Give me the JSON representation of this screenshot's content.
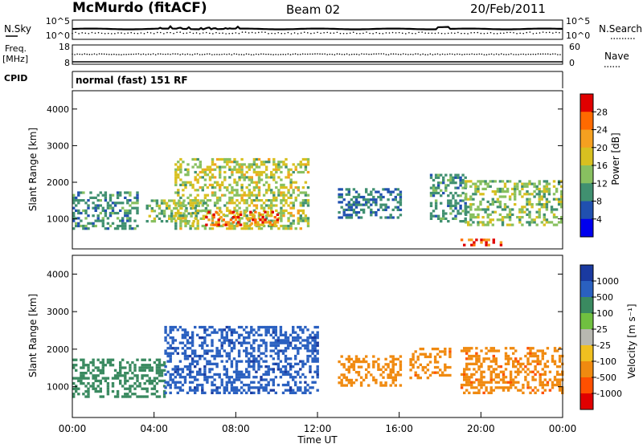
{
  "chart_data": [
    {
      "type": "line",
      "title": "McMurdo (fitACF)",
      "beam": "Beam 02",
      "date": "20/Feb/2011",
      "panel": "noise",
      "left_label": "N.Sky",
      "right_label": "N.Search",
      "ylim_left": [
        "10^0",
        "10^5"
      ],
      "ylim_right": [
        "10^0",
        "10^5"
      ],
      "y_ticks_left": [
        "10^5",
        "10^0"
      ],
      "y_ticks_right": [
        "10^5",
        "10^0"
      ]
    },
    {
      "type": "line",
      "panel": "frequency",
      "left_label": "Freq.",
      "left_unit": "[MHz]",
      "right_label": "Nave",
      "y_ticks_left": [
        "18",
        "8"
      ],
      "y_ticks_right": [
        "60",
        "0"
      ]
    },
    {
      "type": "table",
      "panel": "cpid",
      "label": "CPID",
      "text": "normal (fast) 151 RF"
    },
    {
      "type": "heatmap",
      "panel": "power",
      "ylabel": "Slant Range [km]",
      "y_ticks": [
        1000,
        2000,
        3000,
        4000
      ],
      "ylim": [
        180,
        4500
      ],
      "colorbar_label": "Power [dB]",
      "colorbar_ticks": [
        "28",
        "24",
        "20",
        "16",
        "12",
        "8",
        "4"
      ],
      "colorbar_colors": [
        "#e00000",
        "#ff6a00",
        "#f5a020",
        "#d8c020",
        "#88c060",
        "#409070",
        "#2050b0",
        "#0000ee"
      ],
      "echo_regions": [
        {
          "t0": 0.0,
          "t1": 3.2,
          "r0": 700,
          "r1": 1700,
          "value": 10
        },
        {
          "t0": 3.6,
          "t1": 6.5,
          "r0": 900,
          "r1": 1500,
          "value": 14
        },
        {
          "t0": 5.0,
          "t1": 11.5,
          "r0": 700,
          "r1": 2600,
          "value": 16
        },
        {
          "t0": 6.5,
          "t1": 10.0,
          "r0": 800,
          "r1": 1200,
          "value": 24
        },
        {
          "t0": 13.0,
          "t1": 16.0,
          "r0": 1000,
          "r1": 1800,
          "value": 8
        },
        {
          "t0": 17.5,
          "t1": 19.2,
          "r0": 900,
          "r1": 2200,
          "value": 10
        },
        {
          "t0": 19.2,
          "t1": 24.0,
          "r0": 800,
          "r1": 2000,
          "value": 14
        },
        {
          "t0": 19.0,
          "t1": 21.0,
          "r0": 250,
          "r1": 450,
          "value": 28
        }
      ]
    },
    {
      "type": "heatmap",
      "panel": "velocity",
      "ylabel": "Slant Range [km]",
      "y_ticks": [
        1000,
        2000,
        3000,
        4000
      ],
      "ylim": [
        180,
        4500
      ],
      "xlabel": "Time UT",
      "x_ticks": [
        "00:00",
        "04:00",
        "08:00",
        "12:00",
        "16:00",
        "20:00",
        "00:00"
      ],
      "xlim": [
        0,
        24
      ],
      "colorbar_label": "Velocity [m s⁻¹]",
      "colorbar_ticks": [
        "1000",
        "500",
        "100",
        "25",
        "-25",
        "-100",
        "-500",
        "-1000"
      ],
      "colorbar_colors": [
        "#1a3aa0",
        "#2a60c0",
        "#3a8a60",
        "#70c040",
        "#b8b8b0",
        "#f0c020",
        "#f08a10",
        "#ff5000",
        "#e00000"
      ],
      "echo_regions": [
        {
          "t0": 0.0,
          "t1": 4.5,
          "r0": 700,
          "r1": 1700,
          "value": 300
        },
        {
          "t0": 4.5,
          "t1": 12.0,
          "r0": 800,
          "r1": 2600,
          "value": 800
        },
        {
          "t0": 13.0,
          "t1": 16.0,
          "r0": 1000,
          "r1": 1800,
          "value": -200
        },
        {
          "t0": 16.5,
          "t1": 18.5,
          "r0": 1200,
          "r1": 2000,
          "value": -400
        },
        {
          "t0": 19.0,
          "t1": 24.0,
          "r0": 800,
          "r1": 2000,
          "value": -400
        }
      ]
    }
  ]
}
